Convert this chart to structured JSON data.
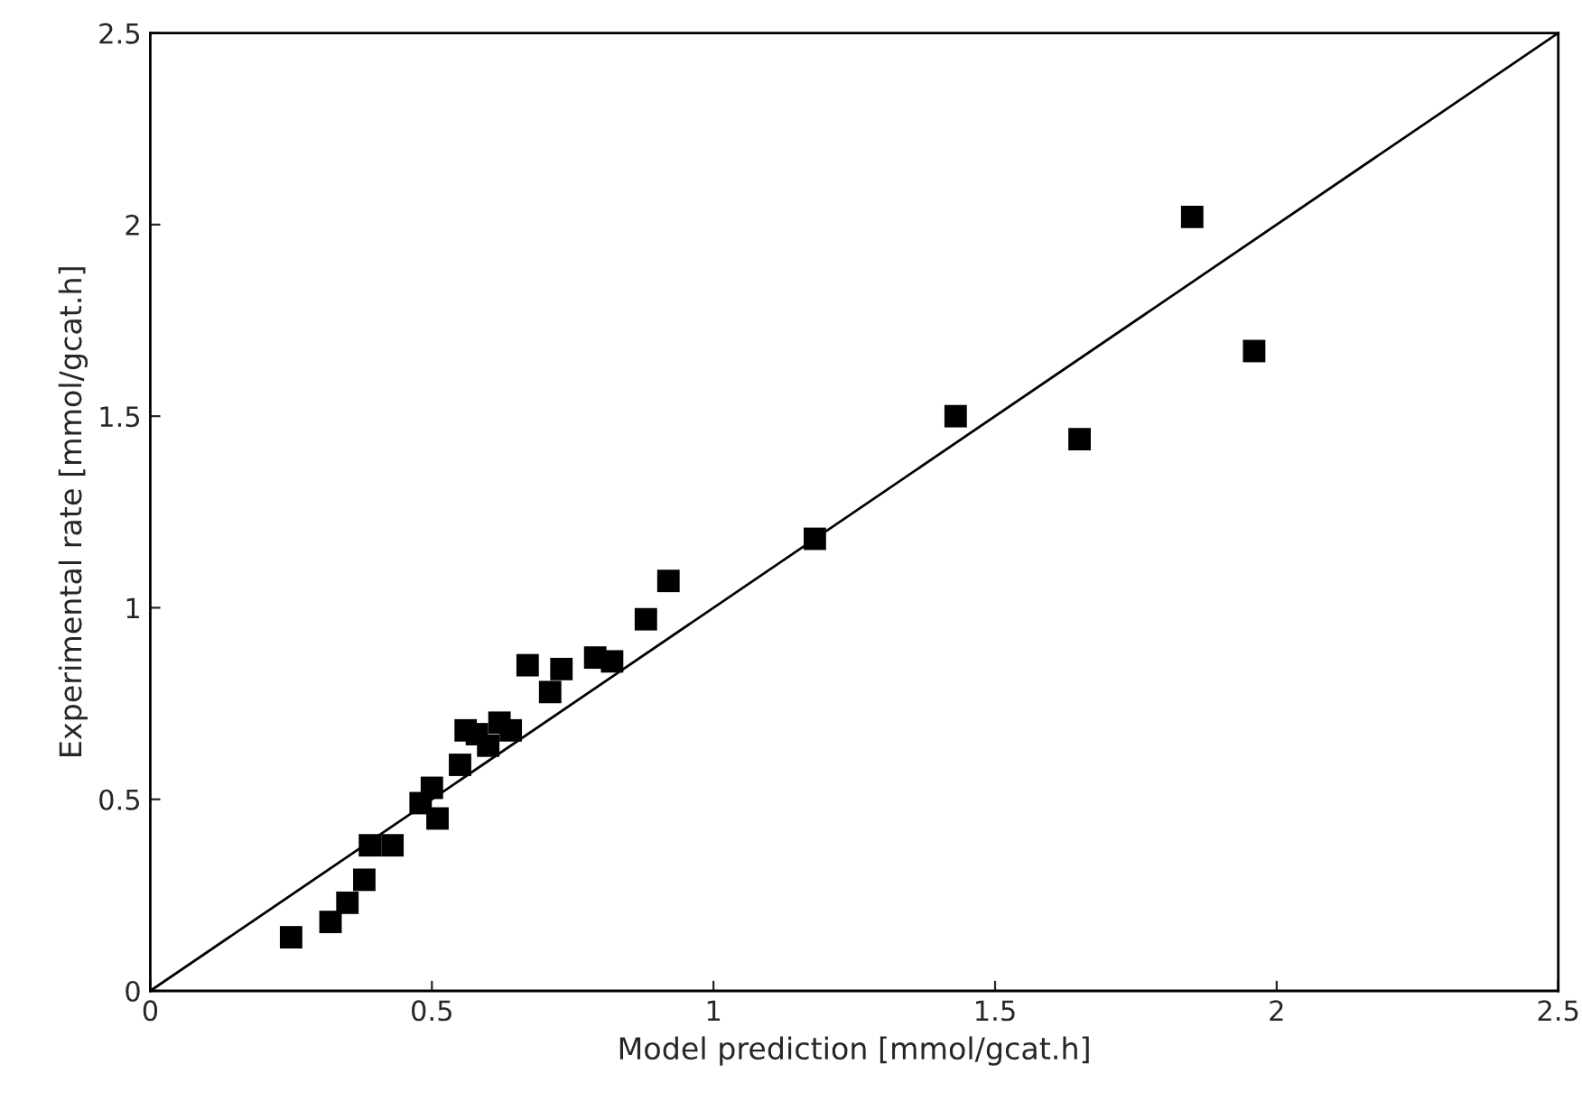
{
  "chart_data": {
    "type": "scatter",
    "xlabel": "Model prediction [mmol/gcat.h]",
    "ylabel": "Experimental rate [mmol/gcat.h]",
    "xlim": [
      0,
      2.5
    ],
    "ylim": [
      0,
      2.5
    ],
    "xticks": [
      0,
      0.5,
      1,
      1.5,
      2,
      2.5
    ],
    "yticks": [
      0,
      0.5,
      1,
      1.5,
      2,
      2.5
    ],
    "grid": false,
    "marker": "square",
    "series": [
      {
        "color": "#000000",
        "x": [
          0.25,
          0.32,
          0.35,
          0.38,
          0.39,
          0.43,
          0.48,
          0.5,
          0.51,
          0.55,
          0.56,
          0.58,
          0.6,
          0.62,
          0.64,
          0.67,
          0.71,
          0.73,
          0.79,
          0.82,
          0.88,
          0.92,
          1.18,
          1.43,
          1.65,
          1.85,
          1.96
        ],
        "values": [
          0.14,
          0.18,
          0.23,
          0.29,
          0.38,
          0.38,
          0.49,
          0.53,
          0.45,
          0.59,
          0.68,
          0.67,
          0.64,
          0.7,
          0.68,
          0.85,
          0.78,
          0.84,
          0.87,
          0.86,
          0.97,
          1.07,
          1.18,
          1.5,
          1.44,
          2.02,
          1.67
        ]
      },
      {
        "type": "line",
        "color": "#000000",
        "marker": "none",
        "line_style": "solid",
        "x": [
          0,
          2.5
        ],
        "values": [
          0,
          2.5
        ]
      }
    ]
  }
}
